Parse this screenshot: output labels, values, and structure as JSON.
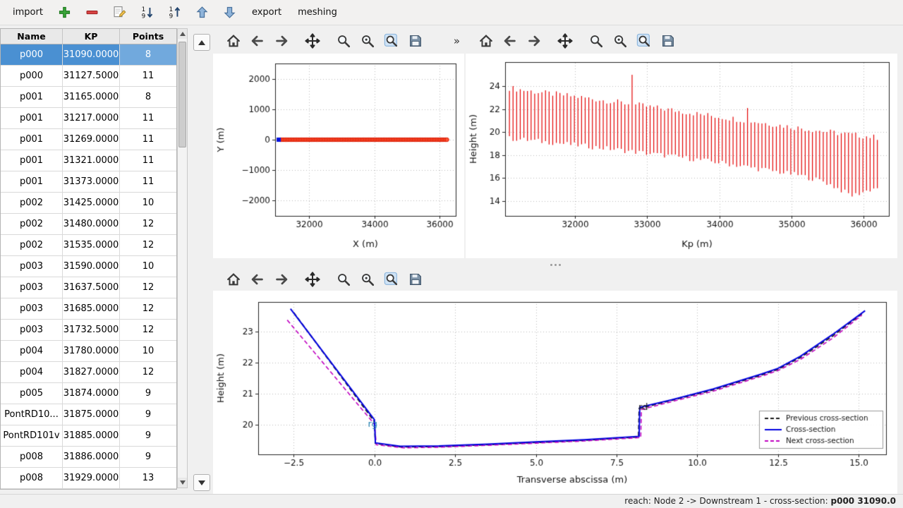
{
  "toolbar": {
    "import_label": "import",
    "export_label": "export",
    "meshing_label": "meshing"
  },
  "mpl_toolbar": {
    "buttons": [
      {
        "name": "home",
        "icon": "home"
      },
      {
        "name": "back",
        "icon": "arrow-left"
      },
      {
        "name": "forward",
        "icon": "arrow-right"
      },
      {
        "name": "pan",
        "icon": "move-arrows"
      },
      {
        "name": "zoom",
        "icon": "magnifier"
      },
      {
        "name": "zoom-original",
        "icon": "magnifier-dot"
      },
      {
        "name": "zoom-region",
        "icon": "magnifier-blue"
      },
      {
        "name": "save",
        "icon": "floppy"
      }
    ],
    "overflow_chevron": "»"
  },
  "table": {
    "columns": [
      "Name",
      "KP",
      "Points"
    ],
    "selected_index": 0,
    "rows": [
      [
        "p000",
        "31090.0000",
        "8"
      ],
      [
        "p000",
        "31127.5000",
        "11"
      ],
      [
        "p001",
        "31165.0000",
        "8"
      ],
      [
        "p001",
        "31217.0000",
        "11"
      ],
      [
        "p001",
        "31269.0000",
        "11"
      ],
      [
        "p001",
        "31321.0000",
        "11"
      ],
      [
        "p001",
        "31373.0000",
        "11"
      ],
      [
        "p002",
        "31425.0000",
        "10"
      ],
      [
        "p002",
        "31480.0000",
        "12"
      ],
      [
        "p002",
        "31535.0000",
        "12"
      ],
      [
        "p003",
        "31590.0000",
        "10"
      ],
      [
        "p003",
        "31637.5000",
        "12"
      ],
      [
        "p003",
        "31685.0000",
        "12"
      ],
      [
        "p003",
        "31732.5000",
        "12"
      ],
      [
        "p004",
        "31780.0000",
        "10"
      ],
      [
        "p004",
        "31827.0000",
        "12"
      ],
      [
        "p005",
        "31874.0000",
        "9"
      ],
      [
        "PontRD10...",
        "31875.0000",
        "9"
      ],
      [
        "PontRD101v",
        "31885.0000",
        "9"
      ],
      [
        "p008",
        "31886.0000",
        "9"
      ],
      [
        "p008",
        "31929.0000",
        "13"
      ]
    ]
  },
  "status": {
    "prefix": "reach: Node 2 -> Downstream 1 - cross-section: ",
    "current": "p000 31090.0"
  },
  "chart_data": [
    {
      "id": "plan",
      "type": "scatter_line",
      "title": "",
      "xlabel": "X (m)",
      "ylabel": "Y (m)",
      "xlim": [
        30950,
        36500
      ],
      "ylim": [
        -2500,
        2500
      ],
      "xticks": [
        32000,
        34000,
        36000
      ],
      "xtick_labels": [
        "32000",
        "34000",
        "36000"
      ],
      "yticks": [
        -2000,
        -1000,
        0,
        1000,
        2000
      ],
      "ytick_labels": [
        "−2000",
        "−1000",
        "0",
        "1000",
        "2000"
      ],
      "line_color": "#0010e0",
      "marker_fill": "#ff5533",
      "marker_edge": "#d81600",
      "start_marker_color": "#0010e0",
      "points": {
        "x_start": 31060,
        "x_end": 36230,
        "count": 104,
        "y": 0
      }
    },
    {
      "id": "profile",
      "type": "vlines",
      "title": "",
      "xlabel": "Kp (m)",
      "ylabel": "Height (m)",
      "xlim": [
        31030,
        36350
      ],
      "ylim": [
        12.7,
        26.1
      ],
      "xticks": [
        32000,
        33000,
        34000,
        35000,
        36000
      ],
      "xtick_labels": [
        "32000",
        "33000",
        "34000",
        "35000",
        "36000"
      ],
      "yticks": [
        14,
        16,
        18,
        20,
        22,
        24
      ],
      "ytick_labels": [
        "14",
        "16",
        "18",
        "20",
        "22",
        "24"
      ],
      "color": "#e30000",
      "kp_start": 31090,
      "kp_end": 36230,
      "kp_step": 50,
      "jitter_top": 0.5,
      "jitter_bottom": 0.45,
      "top_envelope": [
        [
          31090,
          23.85
        ],
        [
          31400,
          23.55
        ],
        [
          32000,
          23.1
        ],
        [
          32600,
          22.6
        ],
        [
          33200,
          22.05
        ],
        [
          33800,
          21.5
        ],
        [
          34400,
          21.0
        ],
        [
          35000,
          20.45
        ],
        [
          35600,
          19.95
        ],
        [
          36230,
          19.5
        ]
      ],
      "bottom_envelope": [
        [
          31090,
          19.45
        ],
        [
          31600,
          19.15
        ],
        [
          32200,
          18.75
        ],
        [
          32800,
          18.3
        ],
        [
          33400,
          17.85
        ],
        [
          34000,
          17.35
        ],
        [
          34600,
          16.75
        ],
        [
          35100,
          16.25
        ],
        [
          35450,
          15.7
        ],
        [
          35700,
          14.9
        ],
        [
          35850,
          14.45
        ],
        [
          36000,
          14.8
        ],
        [
          36230,
          15.25
        ]
      ],
      "spikes": [
        {
          "kp": 32790,
          "top": 25.0
        },
        {
          "kp": 34390,
          "top": 22.1
        }
      ]
    },
    {
      "id": "cross",
      "type": "line",
      "title": "",
      "xlabel": "Transverse abscissa (m)",
      "ylabel": "Height (m)",
      "xlim": [
        -3.6,
        15.85
      ],
      "ylim": [
        19.05,
        23.94
      ],
      "xticks": [
        -2.5,
        0.0,
        2.5,
        5.0,
        7.5,
        10.0,
        12.5,
        15.0
      ],
      "xtick_labels": [
        "−2.5",
        "0.0",
        "2.5",
        "5.0",
        "7.5",
        "10.0",
        "12.5",
        "15.0"
      ],
      "yticks": [
        20,
        21,
        22,
        23
      ],
      "ytick_labels": [
        "20",
        "21",
        "22",
        "23"
      ],
      "series": [
        {
          "name": "Previous cross-section",
          "color": "#1a1a1a",
          "dash": [
            6,
            3.5
          ],
          "width": 1.8,
          "points": [
            [
              -2.5,
              23.6
            ],
            [
              0.0,
              20.1
            ],
            [
              0.03,
              19.4
            ],
            [
              0.8,
              19.29
            ],
            [
              2.0,
              19.3
            ],
            [
              3.5,
              19.36
            ],
            [
              5.0,
              19.43
            ],
            [
              6.5,
              19.5
            ],
            [
              8.18,
              19.61
            ],
            [
              8.2,
              20.52
            ],
            [
              9.2,
              20.78
            ],
            [
              10.5,
              21.12
            ],
            [
              12.0,
              21.6
            ],
            [
              12.5,
              21.78
            ],
            [
              13.2,
              22.16
            ],
            [
              14.2,
              22.85
            ],
            [
              15.15,
              23.6
            ]
          ]
        },
        {
          "name": "Cross-section",
          "color": "#0000e0",
          "dash": [],
          "width": 2,
          "points": [
            [
              -2.6,
              23.72
            ],
            [
              0.0,
              20.16
            ],
            [
              0.03,
              19.42
            ],
            [
              0.8,
              19.31
            ],
            [
              2.0,
              19.32
            ],
            [
              3.5,
              19.38
            ],
            [
              5.0,
              19.45
            ],
            [
              6.5,
              19.52
            ],
            [
              8.2,
              19.63
            ],
            [
              8.22,
              20.56
            ],
            [
              9.2,
              20.8
            ],
            [
              10.5,
              21.15
            ],
            [
              12.0,
              21.63
            ],
            [
              12.5,
              21.81
            ],
            [
              13.2,
              22.2
            ],
            [
              14.2,
              22.9
            ],
            [
              15.2,
              23.66
            ]
          ]
        },
        {
          "name": "Next cross-section",
          "color": "#c000c0",
          "dash": [
            6,
            3.5
          ],
          "width": 1.6,
          "points": [
            [
              -2.7,
              23.36
            ],
            [
              0.0,
              20.02
            ],
            [
              0.06,
              19.36
            ],
            [
              0.9,
              19.26
            ],
            [
              2.0,
              19.28
            ],
            [
              3.5,
              19.34
            ],
            [
              5.0,
              19.41
            ],
            [
              6.5,
              19.48
            ],
            [
              8.25,
              19.59
            ],
            [
              8.27,
              20.49
            ],
            [
              9.2,
              20.74
            ],
            [
              10.5,
              21.08
            ],
            [
              12.0,
              21.56
            ],
            [
              12.5,
              21.74
            ],
            [
              13.2,
              22.1
            ],
            [
              14.2,
              22.78
            ],
            [
              15.1,
              23.52
            ]
          ]
        }
      ],
      "annotations": [
        {
          "text": "rg",
          "x": -0.2,
          "y": 20.0,
          "color": "#2080b0"
        },
        {
          "text": "rd",
          "x": 8.18,
          "y": 20.55,
          "color": "#1a1a1a"
        }
      ],
      "legend": {
        "position": "lower right"
      }
    }
  ]
}
